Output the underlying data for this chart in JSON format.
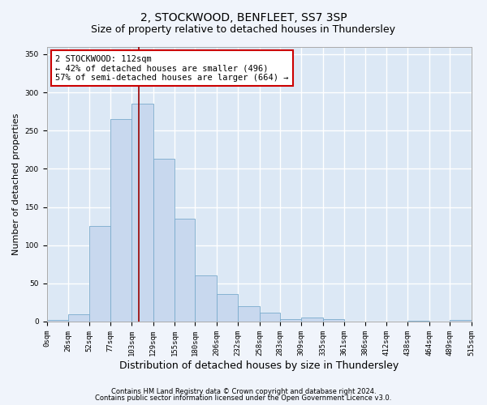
{
  "title1": "2, STOCKWOOD, BENFLEET, SS7 3SP",
  "title2": "Size of property relative to detached houses in Thundersley",
  "xlabel": "Distribution of detached houses by size in Thundersley",
  "ylabel": "Number of detached properties",
  "bins": [
    0,
    26,
    52,
    77,
    103,
    129,
    155,
    180,
    206,
    232,
    258,
    283,
    309,
    335,
    361,
    386,
    412,
    438,
    464,
    489,
    515
  ],
  "bar_heights": [
    2,
    10,
    125,
    265,
    285,
    213,
    135,
    60,
    36,
    20,
    12,
    3,
    5,
    3,
    0,
    0,
    0,
    1,
    0,
    2
  ],
  "bar_color": "#c8d8ee",
  "bar_edge_color": "#7aabcc",
  "ylim": [
    0,
    360
  ],
  "yticks": [
    0,
    50,
    100,
    150,
    200,
    250,
    300,
    350
  ],
  "subject_size": 112,
  "vline_color": "#990000",
  "annotation_text": "2 STOCKWOOD: 112sqm\n← 42% of detached houses are smaller (496)\n57% of semi-detached houses are larger (664) →",
  "annotation_box_facecolor": "white",
  "annotation_box_edgecolor": "#cc0000",
  "footnote1": "Contains HM Land Registry data © Crown copyright and database right 2024.",
  "footnote2": "Contains public sector information licensed under the Open Government Licence v3.0.",
  "fig_facecolor": "#f0f4fb",
  "axes_facecolor": "#dce8f5",
  "grid_color": "white",
  "tick_labels": [
    "0sqm",
    "26sqm",
    "52sqm",
    "77sqm",
    "103sqm",
    "129sqm",
    "155sqm",
    "180sqm",
    "206sqm",
    "232sqm",
    "258sqm",
    "283sqm",
    "309sqm",
    "335sqm",
    "361sqm",
    "386sqm",
    "412sqm",
    "438sqm",
    "464sqm",
    "489sqm",
    "515sqm"
  ],
  "title1_fontsize": 10,
  "title2_fontsize": 9,
  "xlabel_fontsize": 9,
  "ylabel_fontsize": 8,
  "footnote_fontsize": 6,
  "annot_fontsize": 7.5,
  "tick_fontsize": 6.5
}
